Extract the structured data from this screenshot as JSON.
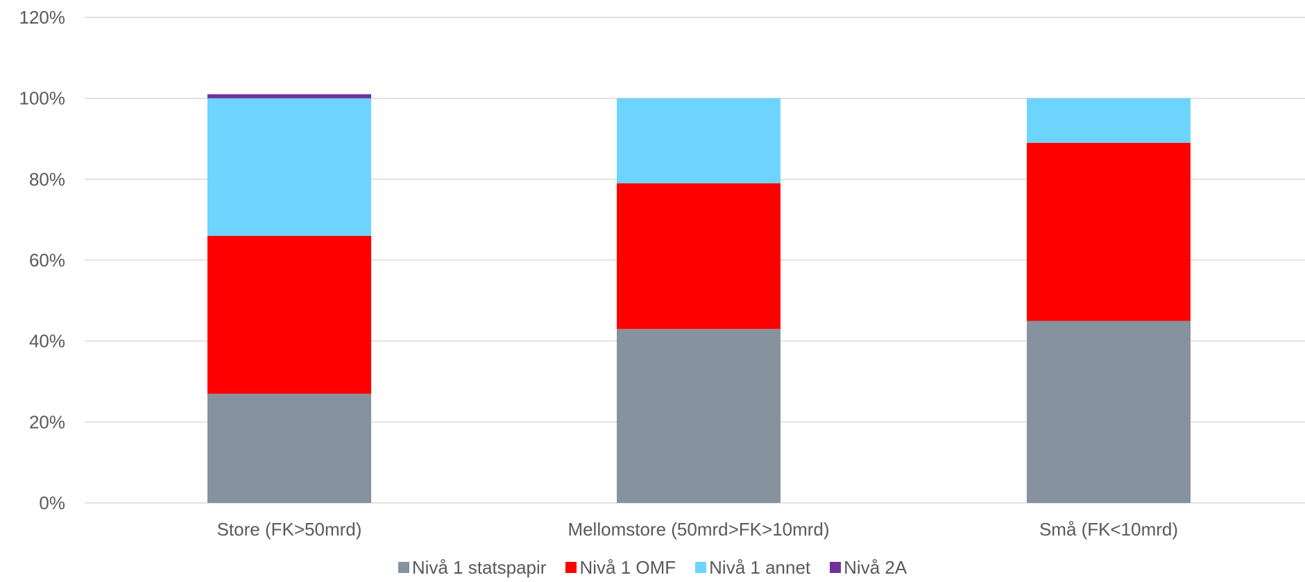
{
  "chart_data": {
    "type": "bar",
    "stacked": true,
    "categories": [
      "Store (FK>50mrd)",
      "Mellomstore (50mrd>FK>10mrd)",
      "Små (FK<10mrd)"
    ],
    "series": [
      {
        "name": "Nivå 1 statspapir",
        "color": "#86929E",
        "values": [
          27,
          43,
          45
        ]
      },
      {
        "name": "Nivå 1 OMF",
        "color": "#FF0000",
        "values": [
          39,
          36,
          44
        ]
      },
      {
        "name": "Nivå 1 annet",
        "color": "#6DD5FD",
        "values": [
          34,
          21,
          11
        ]
      },
      {
        "name": "Nivå 2A",
        "color": "#7030A0",
        "values": [
          1,
          0,
          0
        ]
      }
    ],
    "ylim": [
      0,
      120
    ],
    "yticks": [
      0,
      20,
      40,
      60,
      80,
      100,
      120
    ],
    "ytick_labels": [
      "0%",
      "20%",
      "40%",
      "60%",
      "80%",
      "100%",
      "120%"
    ],
    "grid": true,
    "legend_position": "bottom",
    "title": "",
    "xlabel": "",
    "ylabel": ""
  }
}
